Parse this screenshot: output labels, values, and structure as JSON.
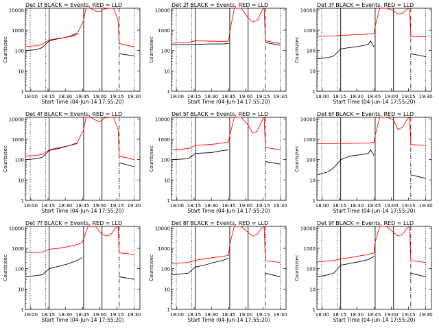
{
  "common": {
    "xlabel": "Start Time (04-Jun-14 17:55:20)",
    "ylabel": "Counts/sec",
    "title_suffix": "BLACK = Events, RED = LLD",
    "xticks": [
      {
        "t": 0,
        "label": "18:00"
      },
      {
        "t": 15,
        "label": "18:15"
      },
      {
        "t": 30,
        "label": "18:30"
      },
      {
        "t": 45,
        "label": "18:45"
      },
      {
        "t": 60,
        "label": "19:00"
      },
      {
        "t": 75,
        "label": "19:15"
      },
      {
        "t": 90,
        "label": "19:30"
      }
    ],
    "yticks": [
      {
        "v": 1,
        "label": "1"
      },
      {
        "v": 10,
        "label": "10"
      },
      {
        "v": 100,
        "label": "100"
      },
      {
        "v": 1000,
        "label": "1000"
      },
      {
        "v": 10000,
        "label": "10000"
      }
    ],
    "xlim_minutes_from_1800": [
      -4.7,
      95
    ],
    "ylim": [
      1,
      12000
    ],
    "yscale": "log",
    "colors": {
      "events": "#000000",
      "lld": "#ff0000"
    }
  },
  "chart_data": [
    {
      "type": "line",
      "title": "Det 1f BLACK = Events, RED = LLD",
      "title_prefix": "Det 1f",
      "series": [
        {
          "name": "BLACK = Events",
          "x": [
            -4,
            5,
            10,
            16,
            22,
            28,
            34,
            40,
            46,
            48,
            76,
            77,
            90
          ],
          "y": [
            100,
            110,
            140,
            300,
            360,
            420,
            500,
            700,
            null,
            null,
            null,
            70,
            55
          ]
        },
        {
          "name": "RED = LLD",
          "x": [
            -4,
            5,
            10,
            16,
            22,
            28,
            34,
            40,
            46,
            48,
            52,
            56,
            60,
            64,
            68,
            72,
            76,
            77,
            90
          ],
          "y": [
            160,
            170,
            200,
            330,
            380,
            420,
            480,
            600,
            3000,
            12000,
            14000,
            9000,
            8000,
            11000,
            14000,
            12000,
            3000,
            220,
            150
          ]
        }
      ]
    },
    {
      "type": "line",
      "title": "Det 2f BLACK = Events, RED = LLD",
      "title_prefix": "Det 2f",
      "series": [
        {
          "name": "BLACK = Events",
          "x": [
            -4,
            10,
            16,
            30,
            40,
            45,
            46,
            77,
            90
          ],
          "y": [
            190,
            200,
            200,
            210,
            210,
            220,
            null,
            250,
            180
          ]
        },
        {
          "name": "RED = LLD",
          "x": [
            -4,
            10,
            16,
            30,
            40,
            45,
            46,
            50,
            56,
            62,
            66,
            70,
            74,
            76,
            77,
            90
          ],
          "y": [
            230,
            250,
            300,
            290,
            280,
            290,
            800,
            14000,
            14000,
            4000,
            2500,
            3000,
            9000,
            14000,
            300,
            220
          ]
        }
      ]
    },
    {
      "type": "line",
      "title": "Det 3f BLACK = Events, RED = LLD",
      "title_prefix": "Det 3f",
      "series": [
        {
          "name": "BLACK = Events",
          "x": [
            -4,
            5,
            10,
            16,
            24,
            32,
            40,
            42,
            45,
            46,
            77,
            90
          ],
          "y": [
            40,
            45,
            55,
            120,
            140,
            160,
            200,
            300,
            150,
            null,
            70,
            50
          ]
        },
        {
          "name": "RED = LLD",
          "x": [
            -4,
            10,
            16,
            30,
            40,
            45,
            46,
            50,
            56,
            62,
            66,
            70,
            74,
            76,
            77,
            90
          ],
          "y": [
            500,
            520,
            560,
            600,
            650,
            680,
            1500,
            14000,
            14000,
            9000,
            6000,
            7000,
            11000,
            14000,
            500,
            480
          ]
        }
      ]
    },
    {
      "type": "line",
      "title": "Det 4f BLACK = Events, RED = LLD",
      "title_prefix": "Det 4f",
      "series": [
        {
          "name": "BLACK = Events",
          "x": [
            -4,
            5,
            10,
            16,
            22,
            28,
            34,
            40,
            46,
            77,
            90
          ],
          "y": [
            100,
            110,
            130,
            280,
            330,
            400,
            500,
            650,
            null,
            70,
            45
          ]
        },
        {
          "name": "RED = LLD",
          "x": [
            -4,
            5,
            10,
            16,
            22,
            28,
            34,
            40,
            46,
            48,
            52,
            56,
            60,
            64,
            68,
            72,
            76,
            77,
            90
          ],
          "y": [
            150,
            160,
            180,
            300,
            360,
            420,
            500,
            600,
            3000,
            12000,
            14000,
            9000,
            7000,
            11000,
            14000,
            12000,
            3000,
            150,
            100
          ]
        }
      ]
    },
    {
      "type": "line",
      "title": "Det 5f BLACK = Events, RED = LLD",
      "title_prefix": "Det 5f",
      "series": [
        {
          "name": "BLACK = Events",
          "x": [
            -4,
            10,
            16,
            30,
            40,
            45,
            46,
            77,
            90
          ],
          "y": [
            100,
            110,
            200,
            220,
            280,
            300,
            null,
            80,
            60
          ]
        },
        {
          "name": "RED = LLD",
          "x": [
            -4,
            10,
            16,
            30,
            40,
            45,
            46,
            50,
            56,
            62,
            66,
            70,
            74,
            76,
            77,
            90
          ],
          "y": [
            300,
            350,
            500,
            560,
            650,
            750,
            1500,
            14000,
            14000,
            5000,
            2000,
            2500,
            8000,
            14000,
            400,
            300
          ]
        }
      ]
    },
    {
      "type": "line",
      "title": "Det 6f BLACK = Events, RED = LLD",
      "title_prefix": "Det 6f",
      "series": [
        {
          "name": "BLACK = Events",
          "x": [
            -4,
            5,
            10,
            16,
            24,
            32,
            40,
            42,
            45,
            46,
            77,
            90
          ],
          "y": [
            18,
            25,
            40,
            100,
            150,
            170,
            200,
            300,
            160,
            null,
            18,
            12
          ]
        },
        {
          "name": "RED = LLD",
          "x": [
            -4,
            10,
            16,
            30,
            40,
            45,
            46,
            50,
            56,
            62,
            66,
            70,
            74,
            76,
            77,
            90
          ],
          "y": [
            600,
            610,
            620,
            640,
            660,
            700,
            1500,
            14000,
            14000,
            9000,
            3000,
            4000,
            10000,
            14000,
            550,
            500
          ]
        }
      ]
    },
    {
      "type": "line",
      "title": "Det 7f BLACK = Events, RED = LLD",
      "title_prefix": "Det 7f",
      "series": [
        {
          "name": "BLACK = Events",
          "x": [
            -4,
            10,
            16,
            24,
            32,
            40,
            45,
            46,
            77,
            90
          ],
          "y": [
            40,
            50,
            100,
            130,
            170,
            250,
            350,
            null,
            40,
            30
          ]
        },
        {
          "name": "RED = LLD",
          "x": [
            -4,
            10,
            16,
            24,
            32,
            40,
            45,
            46,
            50,
            56,
            62,
            66,
            70,
            74,
            76,
            77,
            90
          ],
          "y": [
            600,
            650,
            900,
            1000,
            1200,
            1500,
            2000,
            3000,
            14000,
            14000,
            5000,
            4000,
            5000,
            10000,
            14000,
            600,
            500
          ]
        }
      ]
    },
    {
      "type": "line",
      "title": "Det 8f BLACK = Events, RED = LLD",
      "title_prefix": "Det 8f",
      "series": [
        {
          "name": "BLACK = Events",
          "x": [
            -4,
            10,
            16,
            24,
            32,
            40,
            45,
            46,
            77,
            90
          ],
          "y": [
            50,
            60,
            120,
            150,
            200,
            260,
            320,
            null,
            60,
            40
          ]
        },
        {
          "name": "RED = LLD",
          "x": [
            -4,
            10,
            16,
            24,
            32,
            40,
            45,
            46,
            50,
            56,
            62,
            66,
            70,
            74,
            76,
            77,
            90
          ],
          "y": [
            180,
            200,
            260,
            300,
            350,
            400,
            450,
            1500,
            14000,
            14000,
            6000,
            4000,
            5000,
            10000,
            14000,
            250,
            200
          ]
        }
      ]
    },
    {
      "type": "line",
      "title": "Det 9f BLACK = Events, RED = LLD",
      "title_prefix": "Det 9f",
      "series": [
        {
          "name": "BLACK = Events",
          "x": [
            -4,
            5,
            10,
            16,
            24,
            32,
            40,
            45,
            46,
            77,
            90
          ],
          "y": [
            40,
            50,
            60,
            150,
            180,
            220,
            280,
            400,
            null,
            60,
            40
          ]
        },
        {
          "name": "RED = LLD",
          "x": [
            -4,
            10,
            16,
            24,
            32,
            40,
            45,
            46,
            50,
            56,
            62,
            66,
            70,
            74,
            76,
            77,
            90
          ],
          "y": [
            220,
            250,
            300,
            350,
            420,
            500,
            600,
            2000,
            14000,
            14000,
            6000,
            4000,
            5000,
            10000,
            14000,
            250,
            200
          ]
        }
      ]
    }
  ]
}
